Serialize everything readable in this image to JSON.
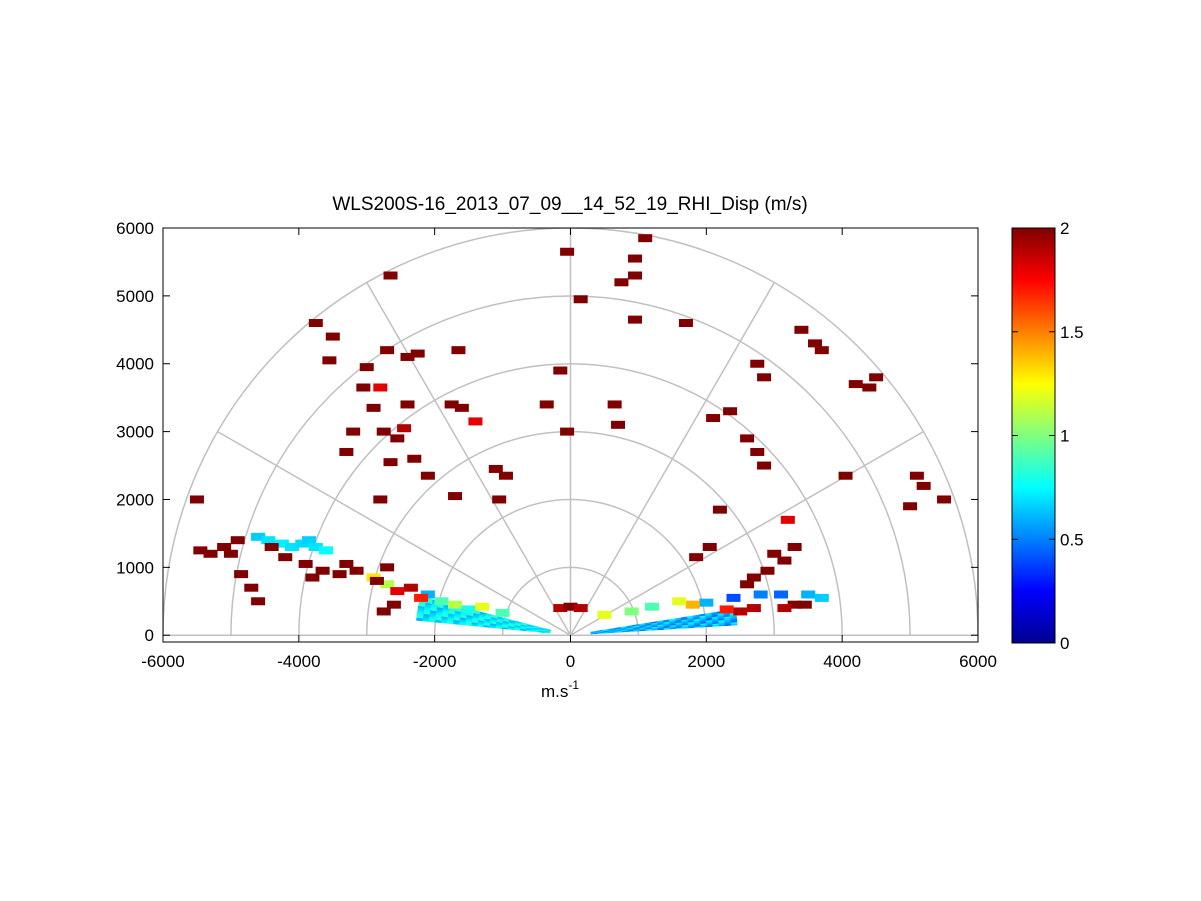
{
  "chart_data": {
    "type": "polar-rhi-scan",
    "title": "WLS200S-16_2013_07_09__14_52_19_RHI_Disp (m/s)",
    "xlabel_base": "m.s",
    "xlabel_exponent": "-1",
    "xlim": [
      -6000,
      6000
    ],
    "ylim": [
      -100,
      6000
    ],
    "xticks": [
      "-6000",
      "-4000",
      "-2000",
      "0",
      "2000",
      "4000",
      "6000"
    ],
    "xtick_values": [
      -6000,
      -4000,
      -2000,
      0,
      2000,
      4000,
      6000
    ],
    "yticks": [
      "0",
      "1000",
      "2000",
      "3000",
      "4000",
      "5000",
      "6000"
    ],
    "ytick_values": [
      0,
      1000,
      2000,
      3000,
      4000,
      5000,
      6000
    ],
    "polar_grid": {
      "ring_radii": [
        1000,
        2000,
        3000,
        4000,
        5000,
        6000
      ],
      "spoke_angles_deg": [
        0,
        30,
        60,
        90,
        120,
        150,
        180
      ]
    },
    "colorbar": {
      "range": [
        0,
        2
      ],
      "ticks": [
        "0",
        "0.5",
        "1",
        "1.5",
        "2"
      ],
      "tick_values": [
        0,
        0.5,
        1,
        1.5,
        2
      ],
      "colormap": "jet"
    },
    "colors": {
      "axes": "#000000",
      "grid": "#c0c0c0",
      "background": "#ffffff"
    },
    "near_field_bands": [
      {
        "side": "left",
        "angle_from_deg": 165.5,
        "angle_to_deg": 174.5,
        "r_from": 300,
        "r_to": 2300,
        "value_low": 0.6,
        "value_high": 0.85
      },
      {
        "side": "right",
        "angle_from_deg": 3.5,
        "angle_to_deg": 9.0,
        "r_from": 300,
        "r_to": 2500,
        "value_low": 0.45,
        "value_high": 0.75
      }
    ],
    "high_dispersion_gates": [
      {
        "x": -5450,
        "y": 1250,
        "v": 2
      },
      {
        "x": -5300,
        "y": 1200,
        "v": 2
      },
      {
        "x": -5100,
        "y": 1300,
        "v": 2
      },
      {
        "x": -5000,
        "y": 1200,
        "v": 2
      },
      {
        "x": -4900,
        "y": 1400,
        "v": 2
      },
      {
        "x": -5500,
        "y": 2000,
        "v": 2
      },
      {
        "x": -4850,
        "y": 900,
        "v": 2
      },
      {
        "x": -4700,
        "y": 700,
        "v": 2
      },
      {
        "x": -4600,
        "y": 500,
        "v": 2
      },
      {
        "x": -4400,
        "y": 1300,
        "v": 2
      },
      {
        "x": -4200,
        "y": 1150,
        "v": 2
      },
      {
        "x": -3900,
        "y": 1050,
        "v": 2
      },
      {
        "x": -3650,
        "y": 950,
        "v": 2
      },
      {
        "x": -3400,
        "y": 900,
        "v": 2
      },
      {
        "x": -3300,
        "y": 1050,
        "v": 2
      },
      {
        "x": -3150,
        "y": 950,
        "v": 2
      },
      {
        "x": -2700,
        "y": 1000,
        "v": 2
      },
      {
        "x": -2550,
        "y": 650,
        "v": 1.8
      },
      {
        "x": -2350,
        "y": 700,
        "v": 1.9
      },
      {
        "x": -2200,
        "y": 550,
        "v": 1.7
      },
      {
        "x": -2600,
        "y": 450,
        "v": 2
      },
      {
        "x": -2750,
        "y": 350,
        "v": 2
      },
      {
        "x": -2850,
        "y": 800,
        "v": 2
      },
      {
        "x": -3800,
        "y": 850,
        "v": 2
      },
      {
        "x": -3500,
        "y": 4400,
        "v": 2
      },
      {
        "x": -3550,
        "y": 4050,
        "v": 2
      },
      {
        "x": -3000,
        "y": 3950,
        "v": 2
      },
      {
        "x": -2700,
        "y": 4200,
        "v": 2
      },
      {
        "x": -2400,
        "y": 4100,
        "v": 2
      },
      {
        "x": -2250,
        "y": 4150,
        "v": 2
      },
      {
        "x": -1650,
        "y": 4200,
        "v": 2
      },
      {
        "x": -3050,
        "y": 3650,
        "v": 2
      },
      {
        "x": -2800,
        "y": 3650,
        "v": 1.8
      },
      {
        "x": -2900,
        "y": 3350,
        "v": 2
      },
      {
        "x": -2400,
        "y": 3400,
        "v": 2
      },
      {
        "x": -1750,
        "y": 3400,
        "v": 2
      },
      {
        "x": -1600,
        "y": 3350,
        "v": 2
      },
      {
        "x": -1400,
        "y": 3150,
        "v": 1.8
      },
      {
        "x": -3200,
        "y": 3000,
        "v": 2
      },
      {
        "x": -2750,
        "y": 3000,
        "v": 2
      },
      {
        "x": -2450,
        "y": 3050,
        "v": 1.9
      },
      {
        "x": -2550,
        "y": 2900,
        "v": 2
      },
      {
        "x": -2300,
        "y": 2600,
        "v": 2
      },
      {
        "x": -2650,
        "y": 2550,
        "v": 2
      },
      {
        "x": -2100,
        "y": 2350,
        "v": 2
      },
      {
        "x": -3300,
        "y": 2700,
        "v": 2
      },
      {
        "x": -2800,
        "y": 2000,
        "v": 2
      },
      {
        "x": -1700,
        "y": 2050,
        "v": 2
      },
      {
        "x": -1100,
        "y": 2450,
        "v": 2
      },
      {
        "x": -950,
        "y": 2350,
        "v": 2
      },
      {
        "x": -1050,
        "y": 2000,
        "v": 2
      },
      {
        "x": -3750,
        "y": 4600,
        "v": 2
      },
      {
        "x": -2650,
        "y": 5300,
        "v": 2
      },
      {
        "x": -350,
        "y": 3400,
        "v": 2
      },
      {
        "x": -50,
        "y": 3000,
        "v": 2
      },
      {
        "x": -150,
        "y": 3900,
        "v": 2
      },
      {
        "x": -50,
        "y": 5650,
        "v": 2
      },
      {
        "x": 150,
        "y": 4950,
        "v": 2
      },
      {
        "x": 950,
        "y": 5550,
        "v": 2
      },
      {
        "x": 1100,
        "y": 5850,
        "v": 2
      },
      {
        "x": 950,
        "y": 5300,
        "v": 2
      },
      {
        "x": 750,
        "y": 5200,
        "v": 2
      },
      {
        "x": 950,
        "y": 4650,
        "v": 2
      },
      {
        "x": 1700,
        "y": 4600,
        "v": 2
      },
      {
        "x": 650,
        "y": 3400,
        "v": 2
      },
      {
        "x": 700,
        "y": 3100,
        "v": 2
      },
      {
        "x": 2100,
        "y": 3200,
        "v": 2
      },
      {
        "x": 2350,
        "y": 3300,
        "v": 2
      },
      {
        "x": 2600,
        "y": 2900,
        "v": 2
      },
      {
        "x": 2750,
        "y": 2700,
        "v": 2
      },
      {
        "x": 2850,
        "y": 2500,
        "v": 2
      },
      {
        "x": 2750,
        "y": 4000,
        "v": 2
      },
      {
        "x": 2850,
        "y": 3800,
        "v": 2
      },
      {
        "x": 3400,
        "y": 4500,
        "v": 2
      },
      {
        "x": 3600,
        "y": 4300,
        "v": 2
      },
      {
        "x": 3700,
        "y": 4200,
        "v": 2
      },
      {
        "x": 4200,
        "y": 3700,
        "v": 2
      },
      {
        "x": 4500,
        "y": 3800,
        "v": 2
      },
      {
        "x": 4400,
        "y": 3650,
        "v": 2
      },
      {
        "x": 4050,
        "y": 2350,
        "v": 2
      },
      {
        "x": 5100,
        "y": 2350,
        "v": 2
      },
      {
        "x": 5200,
        "y": 2200,
        "v": 2
      },
      {
        "x": 5500,
        "y": 2000,
        "v": 2
      },
      {
        "x": 5000,
        "y": 1900,
        "v": 2
      },
      {
        "x": 3200,
        "y": 1700,
        "v": 1.8
      },
      {
        "x": 3300,
        "y": 1300,
        "v": 2
      },
      {
        "x": 3000,
        "y": 1200,
        "v": 2
      },
      {
        "x": 3150,
        "y": 1100,
        "v": 2
      },
      {
        "x": 2900,
        "y": 950,
        "v": 2
      },
      {
        "x": 2700,
        "y": 850,
        "v": 2
      },
      {
        "x": 2600,
        "y": 750,
        "v": 2
      },
      {
        "x": 2200,
        "y": 1850,
        "v": 2
      },
      {
        "x": 2050,
        "y": 1300,
        "v": 2
      },
      {
        "x": 1850,
        "y": 1150,
        "v": 2
      },
      {
        "x": 3450,
        "y": 450,
        "v": 2
      },
      {
        "x": 3300,
        "y": 450,
        "v": 2
      },
      {
        "x": 3150,
        "y": 400,
        "v": 1.9
      },
      {
        "x": 2700,
        "y": 400,
        "v": 1.9
      },
      {
        "x": 2500,
        "y": 350,
        "v": 1.9
      },
      {
        "x": 2300,
        "y": 380,
        "v": 1.7
      },
      {
        "x": 1800,
        "y": 450,
        "v": 1.4
      },
      {
        "x": 1600,
        "y": 500,
        "v": 1.2
      },
      {
        "x": -150,
        "y": 400,
        "v": 1.9
      },
      {
        "x": 0,
        "y": 420,
        "v": 2
      },
      {
        "x": 150,
        "y": 400,
        "v": 1.9
      }
    ],
    "mid_dispersion_gates": [
      {
        "x": -4600,
        "y": 1450,
        "v": 0.65
      },
      {
        "x": -4450,
        "y": 1400,
        "v": 0.7
      },
      {
        "x": -4250,
        "y": 1350,
        "v": 0.72
      },
      {
        "x": -4100,
        "y": 1300,
        "v": 0.7
      },
      {
        "x": -3950,
        "y": 1350,
        "v": 0.68
      },
      {
        "x": -3850,
        "y": 1400,
        "v": 0.66
      },
      {
        "x": -3750,
        "y": 1300,
        "v": 0.7
      },
      {
        "x": -3600,
        "y": 1250,
        "v": 0.75
      },
      {
        "x": -2900,
        "y": 850,
        "v": 1.3
      },
      {
        "x": -2700,
        "y": 750,
        "v": 1.1
      },
      {
        "x": -2100,
        "y": 600,
        "v": 0.6
      },
      {
        "x": -1900,
        "y": 500,
        "v": 0.9
      },
      {
        "x": -1700,
        "y": 450,
        "v": 1.1
      },
      {
        "x": -1500,
        "y": 380,
        "v": 0.8
      },
      {
        "x": -1300,
        "y": 420,
        "v": 1.2
      },
      {
        "x": -1000,
        "y": 330,
        "v": 0.9
      },
      {
        "x": 500,
        "y": 300,
        "v": 1.2
      },
      {
        "x": 900,
        "y": 350,
        "v": 1.0
      },
      {
        "x": 1200,
        "y": 420,
        "v": 0.9
      },
      {
        "x": 2000,
        "y": 480,
        "v": 0.6
      },
      {
        "x": 2400,
        "y": 550,
        "v": 0.4
      },
      {
        "x": 2800,
        "y": 600,
        "v": 0.5
      },
      {
        "x": 3100,
        "y": 600,
        "v": 0.45
      },
      {
        "x": 3500,
        "y": 600,
        "v": 0.6
      },
      {
        "x": 3700,
        "y": 550,
        "v": 0.65
      }
    ]
  }
}
